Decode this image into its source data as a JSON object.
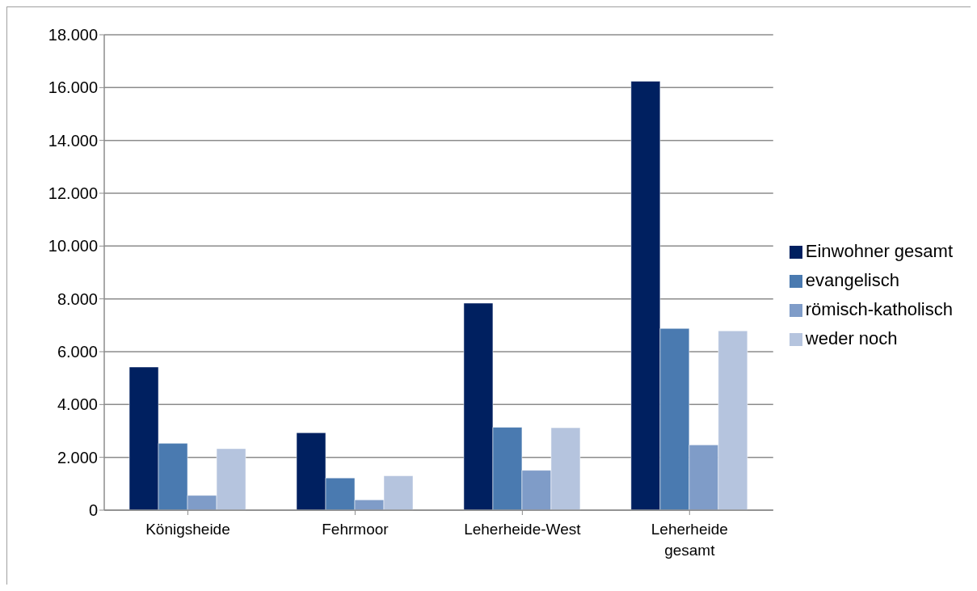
{
  "chart_data": {
    "type": "bar",
    "categories": [
      "Königsheide",
      "Fehrmoor",
      "Leherheide-West",
      "Leherheide gesamt"
    ],
    "series": [
      {
        "name": "Einwohner gesamt",
        "color": "#002060",
        "values": [
          5420,
          2930,
          7840,
          16240
        ]
      },
      {
        "name": "evangelisch",
        "color": "#4a7ab0",
        "values": [
          2530,
          1220,
          3140,
          6880
        ]
      },
      {
        "name": "römisch-katholisch",
        "color": "#7f9cc8",
        "values": [
          560,
          390,
          1510,
          2470
        ]
      },
      {
        "name": "weder noch",
        "color": "#b5c4de",
        "values": [
          2330,
          1300,
          3120,
          6790
        ]
      }
    ],
    "ylim": [
      0,
      18000
    ],
    "yticks": [
      {
        "value": 0,
        "label": "0"
      },
      {
        "value": 2000,
        "label": "2.000"
      },
      {
        "value": 4000,
        "label": "4.000"
      },
      {
        "value": 6000,
        "label": "6.000"
      },
      {
        "value": 8000,
        "label": "8.000"
      },
      {
        "value": 10000,
        "label": "10.000"
      },
      {
        "value": 12000,
        "label": "12.000"
      },
      {
        "value": 14000,
        "label": "14.000"
      },
      {
        "value": 16000,
        "label": "16.000"
      },
      {
        "value": 18000,
        "label": "18.000"
      }
    ],
    "grid": "y",
    "legend": "right"
  }
}
